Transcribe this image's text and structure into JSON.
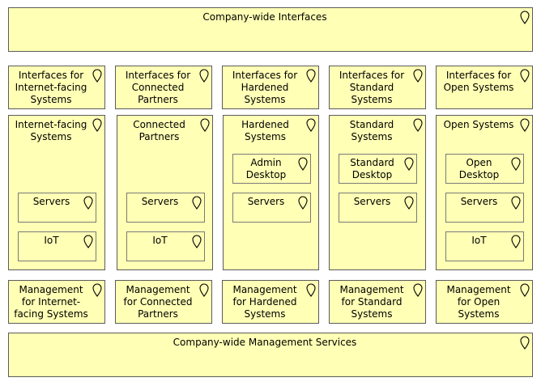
{
  "header": {
    "label": "Company-wide Interfaces"
  },
  "footer": {
    "label": "Company-wide Management Services"
  },
  "columns": [
    {
      "interfaces": "Interfaces for\nInternet-facing\nSystems",
      "group": "Internet-facing\nSystems",
      "servers": "Servers",
      "iot": "IoT",
      "management": "Management\nfor Internet-\nfacing Systems"
    },
    {
      "interfaces": "Interfaces for\nConnected\nPartners",
      "group": "Connected\nPartners",
      "servers": "Servers",
      "iot": "IoT",
      "management": "Management\nfor Connected\nPartners"
    },
    {
      "interfaces": "Interfaces for\nHardened\nSystems",
      "group": "Hardened\nSystems",
      "desktop": "Admin\nDesktop",
      "servers": "Servers",
      "management": "Management\nfor Hardened\nSystems"
    },
    {
      "interfaces": "Interfaces for\nStandard\nSystems",
      "group": "Standard\nSystems",
      "desktop": "Standard\nDesktop",
      "servers": "Servers",
      "management": "Management\nfor Standard\nSystems"
    },
    {
      "interfaces": "Interfaces for\nOpen Systems",
      "group": "Open Systems",
      "desktop": "Open\nDesktop",
      "servers": "Servers",
      "iot": "IoT",
      "management": "Management\nfor Open\nSystems"
    }
  ],
  "icon": "location-icon"
}
